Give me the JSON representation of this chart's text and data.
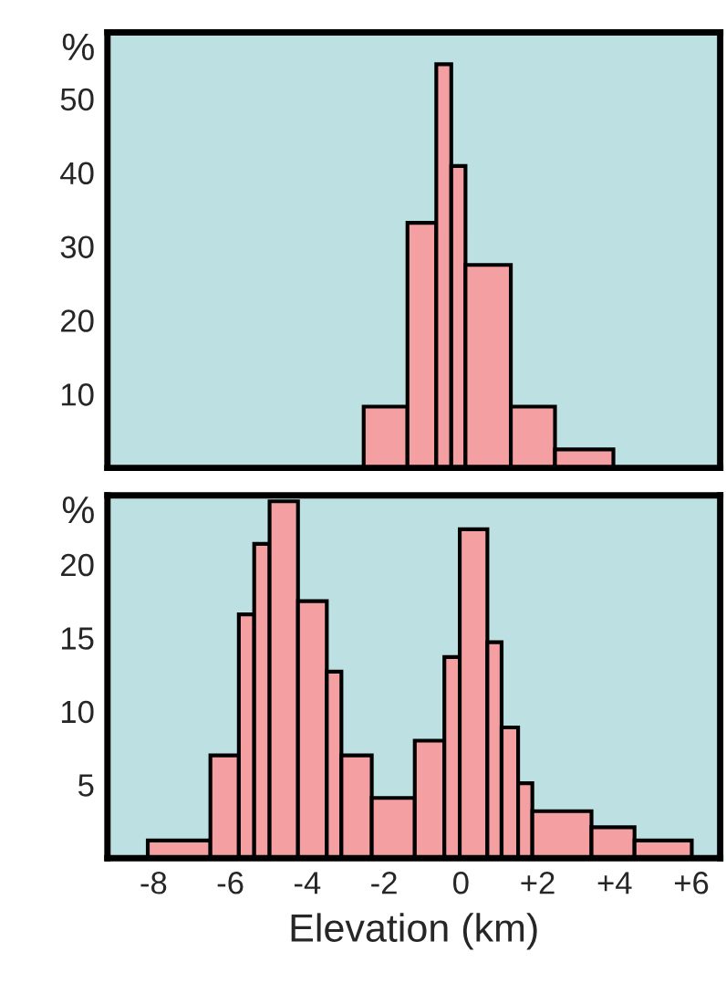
{
  "chart_data": [
    {
      "type": "histogram",
      "ylabel": "%",
      "color": "#f4a0a3",
      "bins": [
        -2.53,
        -1.39,
        -0.64,
        -0.25,
        0.12,
        1.3,
        2.45,
        3.97
      ],
      "values": [
        8.3,
        33.2,
        54.7,
        40.9,
        27.5,
        8.3,
        2.5
      ],
      "xlim": [
        -9.2,
        6.75
      ],
      "xticks": [
        -8,
        -6,
        -4,
        -2,
        0,
        2,
        4,
        6
      ],
      "ylim": [
        0,
        59
      ],
      "yticks": [
        10,
        20,
        30,
        40,
        50
      ],
      "tick_labels": "y",
      "grid": false
    },
    {
      "type": "histogram",
      "ylabel": "%",
      "xlabel": "Elevation (km)",
      "color": "#f4a0a3",
      "bins": [
        -8.15,
        -6.52,
        -5.78,
        -5.38,
        -4.98,
        -4.24,
        -3.49,
        -3.11,
        -2.32,
        -1.2,
        -0.43,
        -0.03,
        0.69,
        1.06,
        1.49,
        1.86,
        3.4,
        4.52,
        6.01
      ],
      "values": [
        1.2,
        7.0,
        16.6,
        21.4,
        24.3,
        17.5,
        12.7,
        7.0,
        4.1,
        8.0,
        13.7,
        22.4,
        14.7,
        8.9,
        5.1,
        3.2,
        2.1,
        1.2
      ],
      "xlim": [
        -9.2,
        6.75
      ],
      "xticks": [
        -8,
        -6,
        -4,
        -2,
        0,
        {
          "value": 2,
          "label": "+2"
        },
        {
          "value": 4,
          "label": "+4"
        },
        {
          "value": 6,
          "label": "+6"
        }
      ],
      "ylim": [
        0,
        24.7
      ],
      "yticks": [
        5,
        10,
        15,
        20
      ],
      "grid": false
    }
  ]
}
